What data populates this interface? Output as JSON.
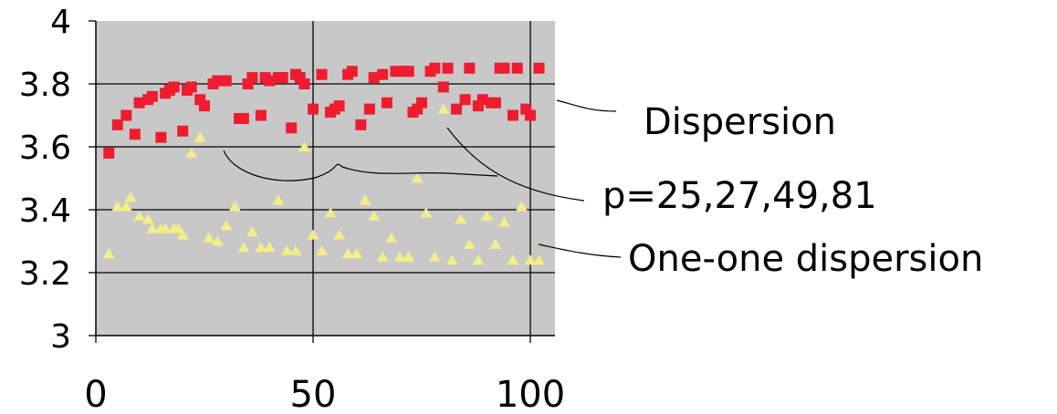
{
  "chart_data": {
    "type": "scatter",
    "title": "",
    "xlabel": "",
    "ylabel": "",
    "xlim": [
      0,
      108
    ],
    "ylim": [
      3,
      4
    ],
    "x_ticks": [
      0,
      50,
      100
    ],
    "y_ticks": [
      3,
      3.2,
      3.4,
      3.6,
      3.8,
      4
    ],
    "x_tick_labels": [
      "0",
      "50",
      "100"
    ],
    "y_tick_labels": [
      "3",
      "3.2",
      "3.4",
      "3.6",
      "3.8",
      "4"
    ],
    "grid": true,
    "plot_background": "#c8c8c8",
    "series": [
      {
        "color": "#ee1c2e",
        "marker": "square",
        "x": [
          3,
          5,
          7,
          9,
          10,
          12,
          13,
          15,
          16,
          17,
          18,
          20,
          21,
          22,
          24,
          25,
          27,
          28,
          30,
          33,
          34,
          35,
          36,
          38,
          39,
          40,
          42,
          43,
          45,
          46,
          47,
          48,
          50,
          52,
          54,
          55,
          56,
          58,
          59,
          61,
          63,
          64,
          66,
          67,
          69,
          71,
          72,
          73,
          74,
          75,
          77,
          78,
          80,
          81,
          83,
          85,
          86,
          88,
          89,
          91,
          92,
          93,
          94,
          96,
          97,
          99,
          100,
          102
        ],
        "y": [
          3.58,
          3.67,
          3.7,
          3.64,
          3.74,
          3.75,
          3.76,
          3.63,
          3.77,
          3.78,
          3.79,
          3.65,
          3.78,
          3.79,
          3.75,
          3.73,
          3.8,
          3.81,
          3.81,
          3.69,
          3.69,
          3.8,
          3.82,
          3.7,
          3.82,
          3.81,
          3.82,
          3.82,
          3.66,
          3.83,
          3.82,
          3.8,
          3.72,
          3.83,
          3.71,
          3.72,
          3.73,
          3.83,
          3.84,
          3.67,
          3.72,
          3.82,
          3.83,
          3.74,
          3.84,
          3.84,
          3.84,
          3.71,
          3.72,
          3.74,
          3.84,
          3.85,
          3.79,
          3.85,
          3.72,
          3.75,
          3.85,
          3.73,
          3.75,
          3.74,
          3.74,
          3.85,
          3.85,
          3.7,
          3.85,
          3.72,
          3.7,
          3.85
        ]
      },
      {
        "color": "#f4ee8a",
        "marker": "triangle",
        "x": [
          3,
          5,
          7,
          8,
          10,
          12,
          13,
          15,
          16,
          18,
          19,
          20,
          22,
          24,
          26,
          28,
          30,
          32,
          34,
          36,
          38,
          40,
          42,
          44,
          46,
          48,
          50,
          52,
          54,
          56,
          58,
          60,
          62,
          64,
          66,
          68,
          70,
          72,
          74,
          76,
          78,
          80,
          82,
          84,
          86,
          88,
          90,
          92,
          94,
          96,
          98,
          100,
          102
        ],
        "y": [
          3.26,
          3.41,
          3.41,
          3.44,
          3.38,
          3.37,
          3.34,
          3.34,
          3.34,
          3.34,
          3.34,
          3.32,
          3.58,
          3.63,
          3.31,
          3.3,
          3.35,
          3.41,
          3.28,
          3.33,
          3.28,
          3.28,
          3.43,
          3.27,
          3.27,
          3.6,
          3.32,
          3.27,
          3.39,
          3.32,
          3.26,
          3.26,
          3.43,
          3.38,
          3.25,
          3.31,
          3.25,
          3.25,
          3.5,
          3.39,
          3.25,
          3.72,
          3.24,
          3.37,
          3.29,
          3.24,
          3.38,
          3.29,
          3.36,
          3.24,
          3.41,
          3.24,
          3.24
        ]
      }
    ],
    "annotations": [
      {
        "text": "Dispersion"
      },
      {
        "text": "p=25,27,49,81"
      },
      {
        "text": "One-one dispersion"
      }
    ]
  }
}
